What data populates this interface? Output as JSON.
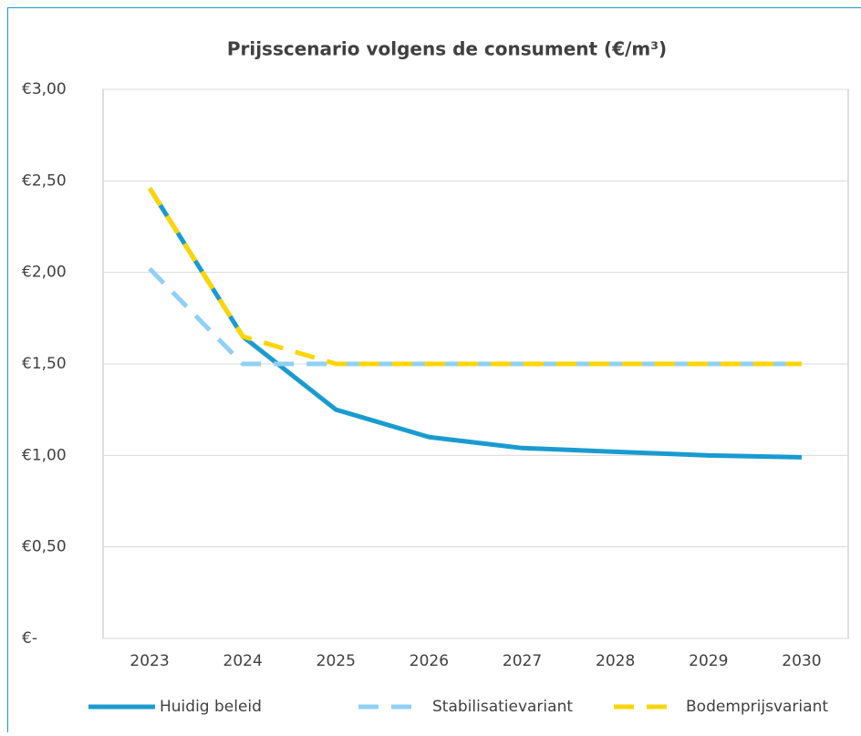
{
  "chart_data": {
    "type": "line",
    "title": "Prijsscenario volgens de consument (€/m³)",
    "categories": [
      "2023",
      "2024",
      "2025",
      "2026",
      "2027",
      "2028",
      "2029",
      "2030"
    ],
    "series": [
      {
        "name": "Huidig beleid",
        "color": "#1a9bd0",
        "dash": false,
        "values": [
          2.46,
          1.65,
          1.25,
          1.1,
          1.04,
          1.02,
          1.0,
          0.99
        ]
      },
      {
        "name": "Stabilisatievariant",
        "color": "#8fd1f5",
        "dash": true,
        "values": [
          2.02,
          1.5,
          1.5,
          1.5,
          1.5,
          1.5,
          1.5,
          1.5
        ]
      },
      {
        "name": "Bodemprijsvariant",
        "color": "#ffd500",
        "dash": true,
        "values": [
          2.46,
          1.65,
          1.5,
          1.5,
          1.5,
          1.5,
          1.5,
          1.5
        ]
      }
    ],
    "ylim": [
      0,
      3
    ],
    "yticks": [
      {
        "value": 0,
        "label": "€-"
      },
      {
        "value": 0.5,
        "label": "€0,50"
      },
      {
        "value": 1,
        "label": "€1,00"
      },
      {
        "value": 1.5,
        "label": "€1,50"
      },
      {
        "value": 2,
        "label": "€2,00"
      },
      {
        "value": 2.5,
        "label": "€2,50"
      },
      {
        "value": 3,
        "label": "€3,00"
      }
    ],
    "grid": true,
    "legend": "bottom"
  }
}
